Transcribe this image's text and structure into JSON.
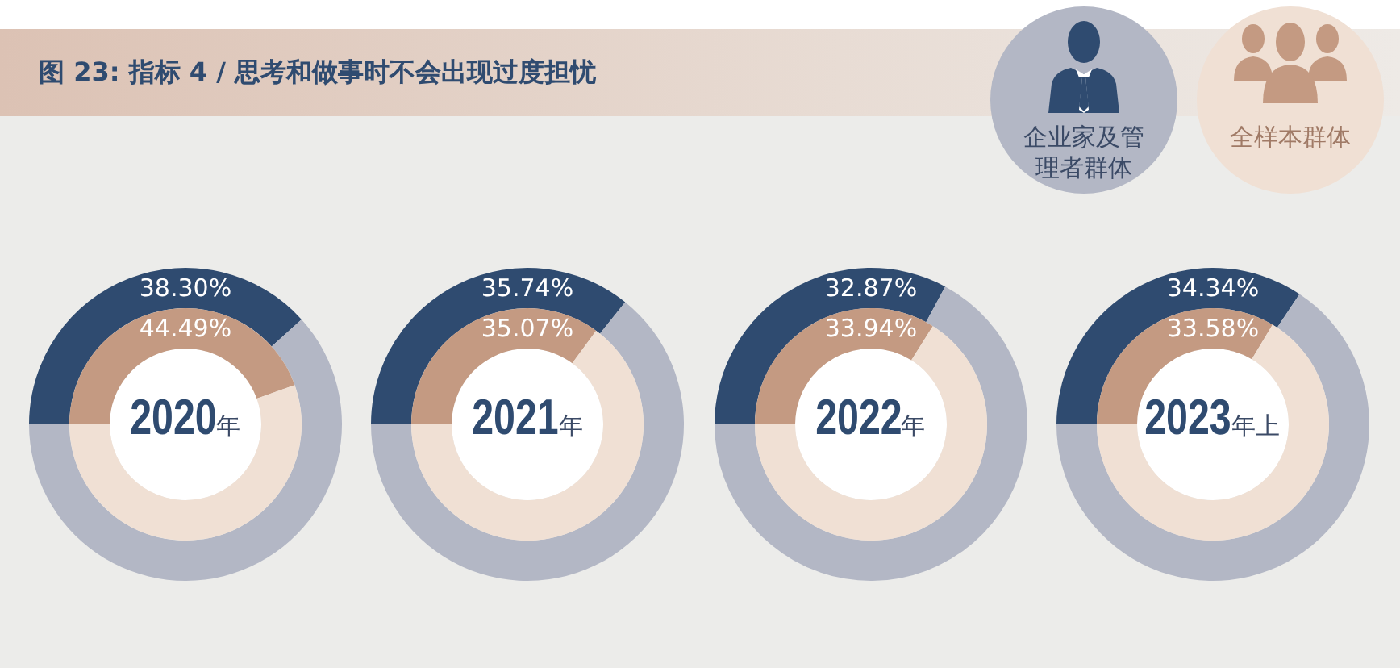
{
  "chart_data": [
    {
      "type": "donut",
      "title": "图 23: 指标 4 / 思考和做事时不会出现过度担忧",
      "subtitle": "2020年",
      "categories": [
        null,
        null
      ],
      "legend": "top right",
      "series": [
        {
          "name": "企业家及管理者群体",
          "colors": [
            "#2f4b70",
            "#b3b7c5"
          ],
          "values": [
            38.3,
            61.7
          ],
          "value_labels": [
            "38.30%",
            null
          ]
        },
        {
          "name": "全样本群体",
          "colors": [
            "#c49a82",
            "#f0e0d4"
          ],
          "values": [
            44.49,
            55.51
          ],
          "value_labels": [
            "44.49%",
            null
          ]
        }
      ]
    },
    {
      "type": "donut",
      "subtitle": "2021年",
      "categories": [
        null,
        null
      ],
      "series": [
        {
          "colors": [
            "#2f4b70",
            "#b3b7c5"
          ],
          "values": [
            35.74,
            64.26
          ],
          "value_labels": [
            "35.74%",
            null
          ]
        },
        {
          "colors": [
            "#c49a82",
            "#f0e0d4"
          ],
          "values": [
            35.07,
            64.93
          ],
          "value_labels": [
            "35.07%",
            null
          ]
        }
      ]
    },
    {
      "type": "donut",
      "subtitle": "2022年",
      "categories": [
        null,
        null
      ],
      "series": [
        {
          "colors": [
            "#2f4b70",
            "#b3b7c5"
          ],
          "values": [
            32.87,
            67.13
          ],
          "value_labels": [
            "32.87%",
            null
          ]
        },
        {
          "colors": [
            "#c49a82",
            "#f0e0d4"
          ],
          "values": [
            33.94,
            66.06
          ],
          "value_labels": [
            "33.94%",
            null
          ]
        }
      ]
    },
    {
      "type": "donut",
      "subtitle": "2023年上",
      "categories": [
        null,
        null
      ],
      "series": [
        {
          "colors": [
            "#2f4b70",
            "#b3b7c5"
          ],
          "values": [
            34.34,
            65.66
          ],
          "value_labels": [
            "34.34%",
            null
          ]
        },
        {
          "colors": [
            "#c49a82",
            "#f0e0d4"
          ],
          "values": [
            33.58,
            66.42
          ],
          "value_labels": [
            "33.58%",
            null
          ]
        }
      ]
    }
  ]
}
